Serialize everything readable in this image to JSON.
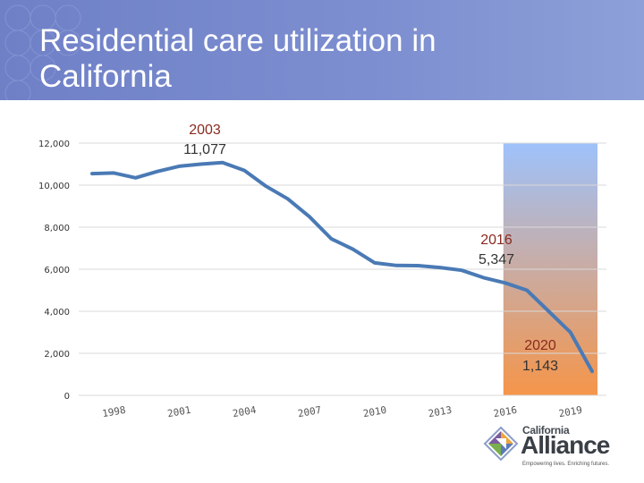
{
  "slide": {
    "title": "Residential care utilization in California"
  },
  "colors": {
    "header": "#7485cb",
    "line": "#4a7ab5",
    "annotation_year": "#8b2a1e",
    "annotation_value": "#333333",
    "highlight_top": "#9ec2fb",
    "highlight_bottom": "#f5954a"
  },
  "chart_data": {
    "type": "line",
    "title": "Residential care utilization in California",
    "xlabel": "",
    "ylabel": "",
    "x": [
      1997,
      1998,
      1999,
      2000,
      2001,
      2002,
      2003,
      2004,
      2005,
      2006,
      2007,
      2008,
      2009,
      2010,
      2011,
      2012,
      2013,
      2014,
      2015,
      2016,
      2017,
      2018,
      2019,
      2020
    ],
    "series": [
      {
        "name": "Residential care",
        "values": [
          10550,
          10580,
          10350,
          10650,
          10900,
          11000,
          11077,
          10700,
          9950,
          9350,
          8500,
          7450,
          6950,
          6300,
          6180,
          6170,
          6080,
          5950,
          5600,
          5347,
          5000,
          4000,
          3000,
          1143
        ]
      }
    ],
    "ylim": [
      0,
      12000
    ],
    "yticks": [
      0,
      2000,
      4000,
      6000,
      8000,
      10000,
      12000
    ],
    "ytick_labels": [
      "0",
      "2,000",
      "4,000",
      "6,000",
      "8,000",
      "10,000",
      "12,000"
    ],
    "xtick_labels": [
      "1998",
      "2001",
      "2004",
      "2007",
      "2010",
      "2013",
      "2016",
      "2019"
    ],
    "highlight_range": [
      2016,
      2020
    ],
    "annotations": [
      {
        "year": "2003",
        "value": "11,077",
        "x": 2003,
        "y": 11077
      },
      {
        "year": "2016",
        "value": "5,347",
        "x": 2016,
        "y": 5347
      },
      {
        "year": "2020",
        "value": "1,143",
        "x": 2020,
        "y": 1143
      }
    ]
  },
  "logo": {
    "small_text": "California",
    "big_text": "Alliance",
    "tagline": "Empowering lives. Enriching futures.",
    "icon": "diamond-arrow-logo-icon"
  }
}
